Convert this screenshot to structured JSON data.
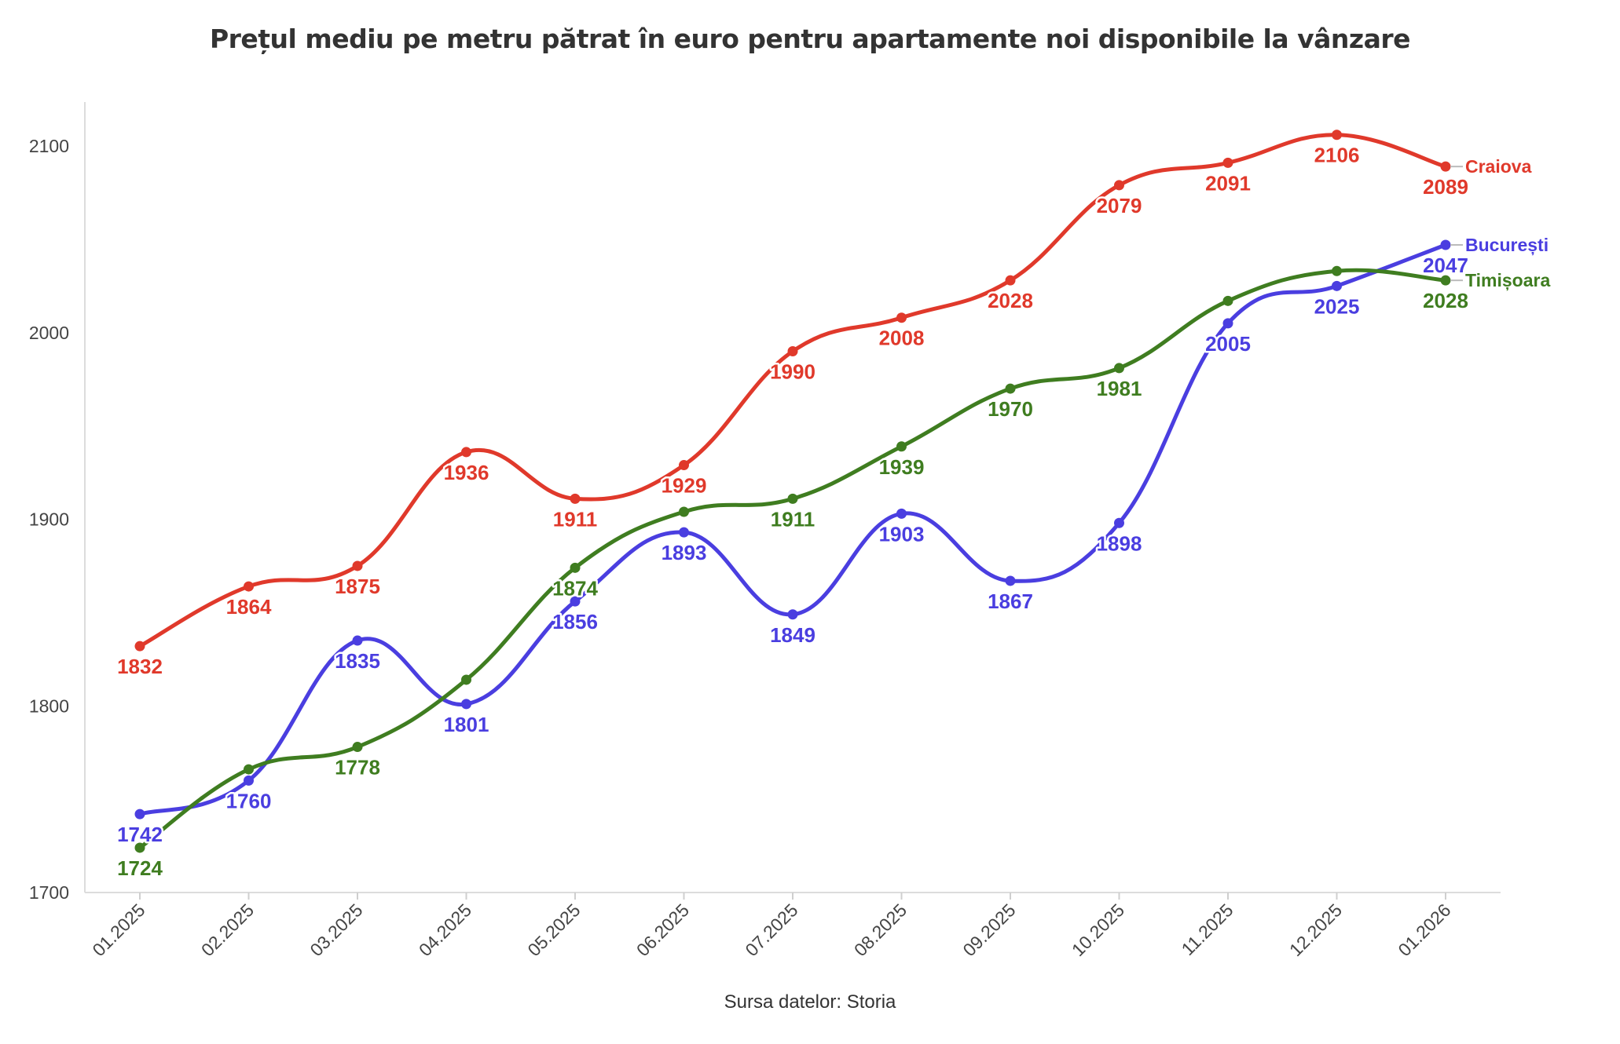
{
  "chart_data": {
    "type": "line",
    "title": "Prețul mediu pe metru pătrat în euro pentru apartamente noi disponibile la vânzare",
    "source": "Sursa datelor: Storia",
    "xlabel": "",
    "ylabel": "",
    "categories": [
      "01.2025",
      "02.2025",
      "03.2025",
      "04.2025",
      "05.2025",
      "06.2025",
      "07.2025",
      "08.2025",
      "09.2025",
      "10.2025",
      "11.2025",
      "12.2025",
      "01.2026"
    ],
    "ylim": [
      1700,
      2120
    ],
    "yticks": [
      1700,
      1800,
      1900,
      2000,
      2100
    ],
    "grid": false,
    "legend": "none (series names printed at right end of lines)",
    "series": [
      {
        "name": "Craiova",
        "color": "#e0392b",
        "values": [
          1832,
          1864,
          1875,
          1936,
          1911,
          1929,
          1990,
          2008,
          2028,
          2079,
          2091,
          2106,
          2089
        ]
      },
      {
        "name": "București",
        "color": "#4a3ee0",
        "values": [
          1742,
          1760,
          1835,
          1801,
          1856,
          1893,
          1849,
          1903,
          1867,
          1898,
          2005,
          2025,
          2047
        ]
      },
      {
        "name": "Timișoara",
        "color": "#3f7d20",
        "values": [
          1724,
          1766,
          1778,
          1814,
          1874,
          1904,
          1911,
          1939,
          1970,
          1981,
          2017,
          2033,
          2028
        ]
      }
    ],
    "data_labels": {
      "Craiova": [
        "1832",
        "1864",
        "1875",
        "1936",
        "1911",
        "1929",
        "1990",
        "2008",
        "2028",
        "2079",
        "2091",
        "2106",
        "2089"
      ],
      "București": [
        "1742",
        "1760",
        "1835",
        "1801",
        "1856",
        "1893",
        "1849",
        "1903",
        "1867",
        "1898",
        "2005",
        "2025",
        "2047"
      ],
      "Timișoara": [
        "1724",
        "",
        "1778",
        "",
        "1874",
        "",
        "1911",
        "1939",
        "1970",
        "1981",
        "",
        "",
        "2028"
      ]
    }
  }
}
